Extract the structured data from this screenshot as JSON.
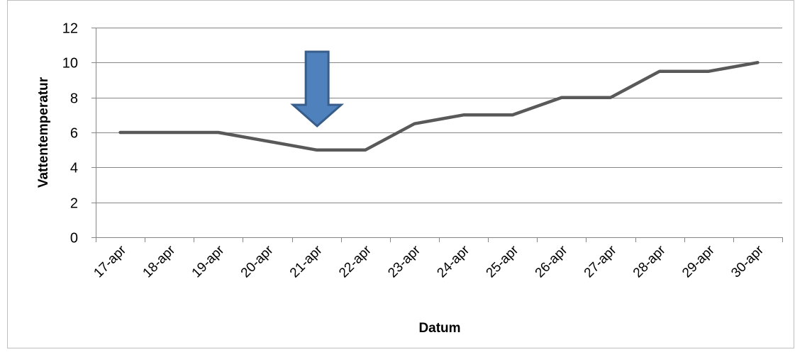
{
  "chart_data": {
    "type": "line",
    "title": "",
    "xlabel": "Datum",
    "ylabel": "Vattentemperatur",
    "categories": [
      "17-apr",
      "18-apr",
      "19-apr",
      "20-apr",
      "21-apr",
      "22-apr",
      "23-apr",
      "24-apr",
      "25-apr",
      "26-apr",
      "27-apr",
      "28-apr",
      "29-apr",
      "30-apr"
    ],
    "series": [
      {
        "values": [
          6,
          6,
          6,
          5.5,
          5,
          5,
          6.5,
          7,
          7,
          8,
          8,
          9.5,
          9.5,
          10
        ],
        "color": "#595959"
      }
    ],
    "ylim": [
      0,
      12
    ],
    "yticks": [
      0,
      2,
      4,
      6,
      8,
      10,
      12
    ],
    "grid": true,
    "legend": "none",
    "annotation": {
      "type": "down-arrow",
      "category": "21-apr",
      "fill": "#4F81BD",
      "stroke": "#385D8A"
    }
  }
}
